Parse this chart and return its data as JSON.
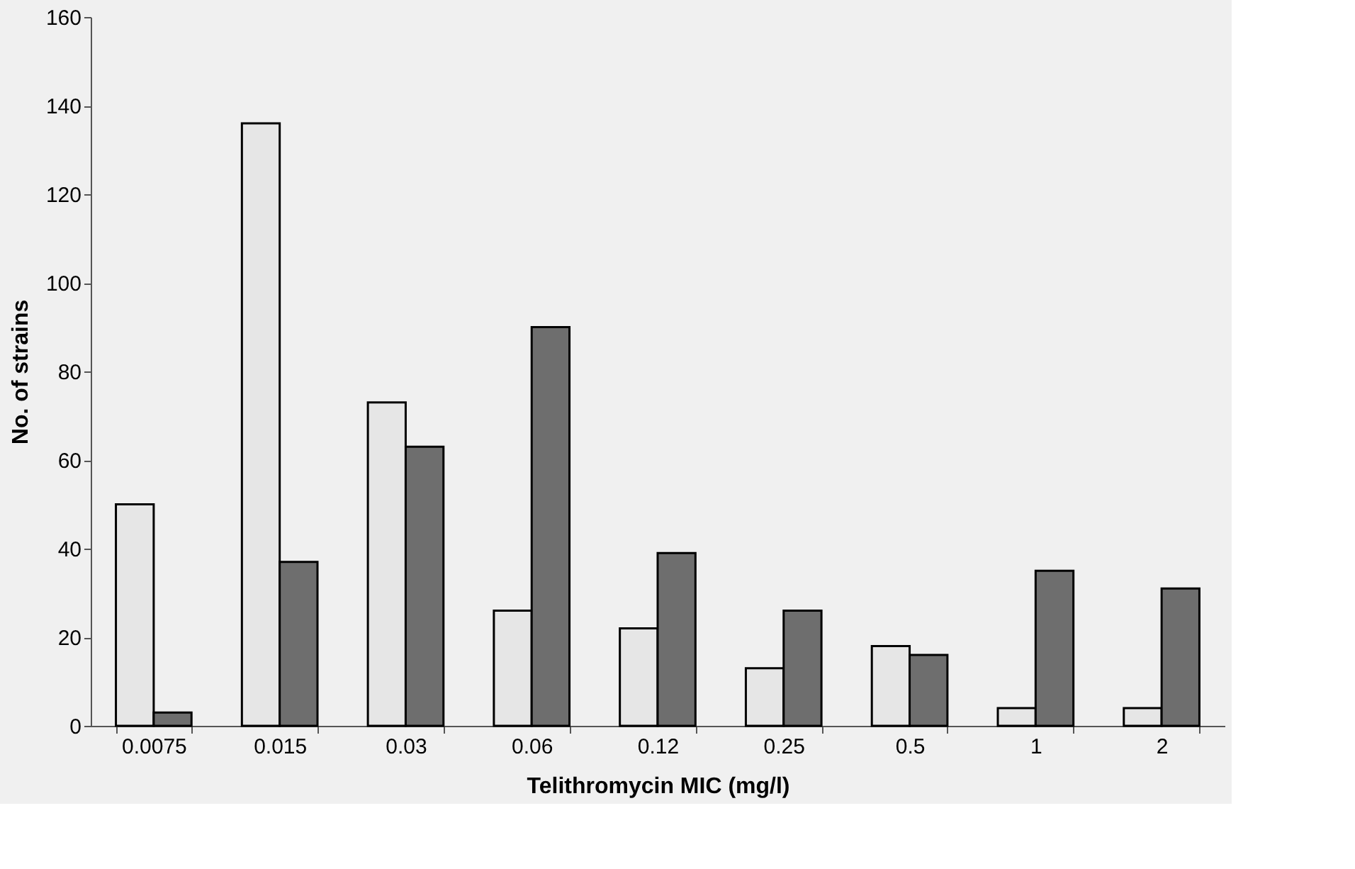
{
  "chart_data": {
    "type": "bar",
    "xlabel": "Telithromycin MIC (mg/l)",
    "ylabel": "No. of strains",
    "categories": [
      "0.0075",
      "0.015",
      "0.03",
      "0.06",
      "0.12",
      "0.25",
      "0.5",
      "1",
      "2"
    ],
    "series": [
      {
        "color": "#e6e6e6",
        "values": [
          50,
          136,
          73,
          26,
          22,
          13,
          18,
          4,
          4
        ]
      },
      {
        "color": "#6e6e6e",
        "values": [
          3,
          37,
          63,
          90,
          39,
          26,
          16,
          35,
          31
        ]
      }
    ],
    "ylim": [
      0,
      160
    ],
    "yticks": [
      0,
      20,
      40,
      60,
      80,
      100,
      120,
      140,
      160
    ],
    "grid": false,
    "legend": false
  }
}
